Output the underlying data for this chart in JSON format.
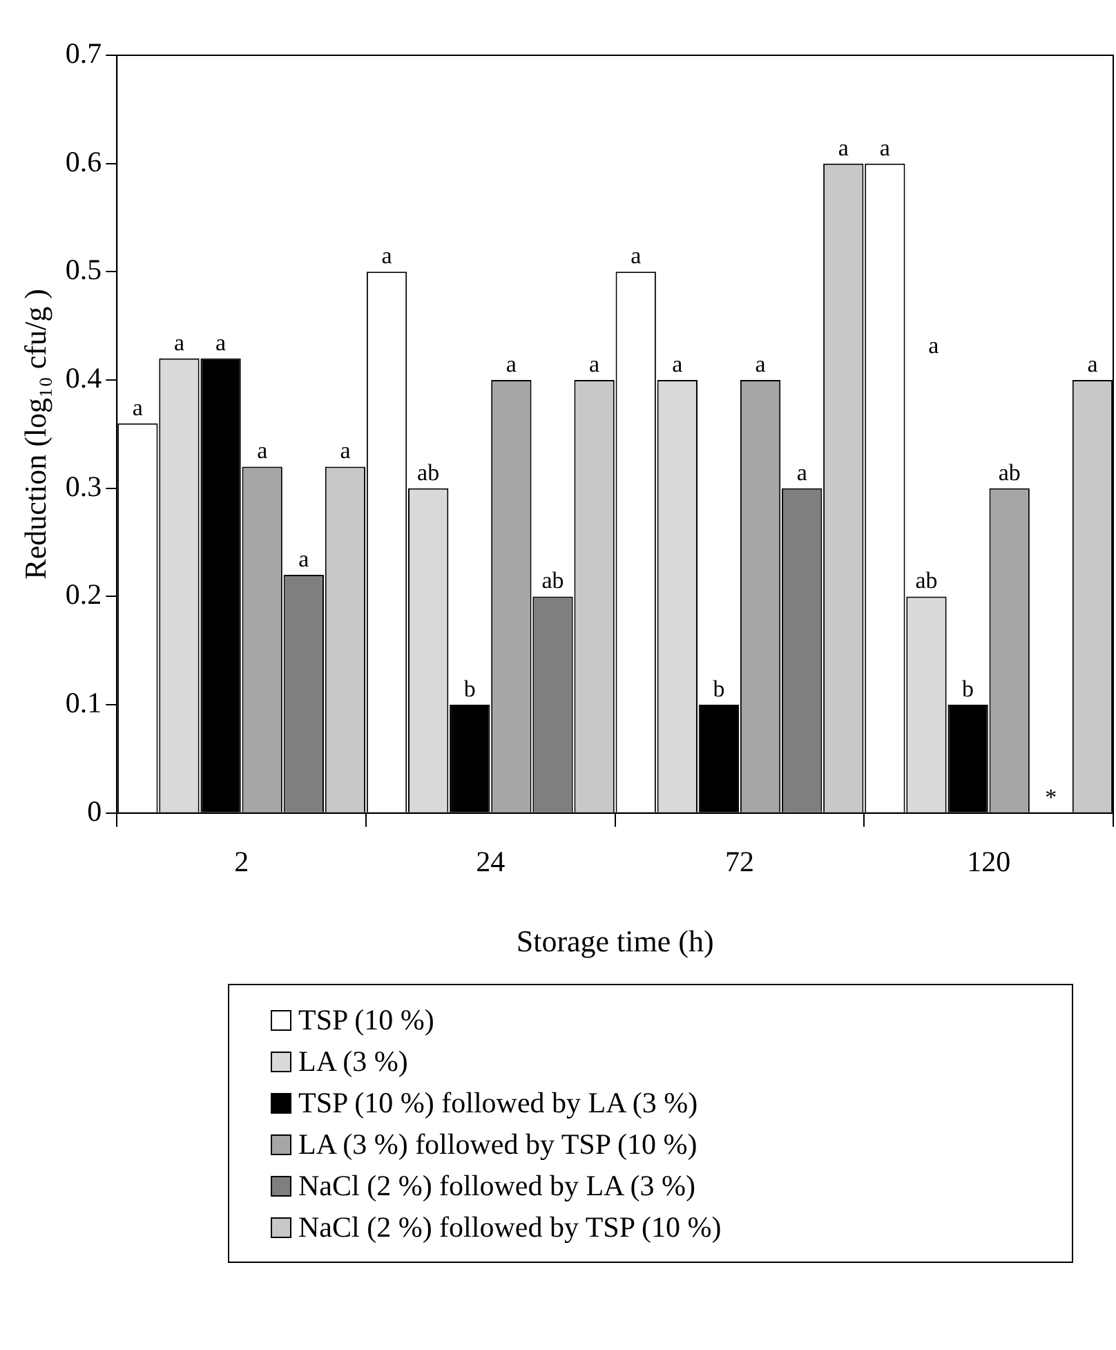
{
  "chart_data": {
    "type": "bar",
    "xlabel": "Storage time (h)",
    "ylabel": "Reduction (log₁₀ cfu/g )",
    "categories": [
      "2",
      "24",
      "72",
      "120"
    ],
    "series": [
      {
        "name": "TSP (10 %)",
        "color": "#ffffff",
        "values": [
          0.36,
          0.5,
          0.5,
          0.6
        ],
        "value_labels": [
          "a",
          "a",
          "a",
          "a"
        ]
      },
      {
        "name": "LA (3 %)",
        "color": "#d9d9d9",
        "values": [
          0.42,
          0.3,
          0.4,
          0.2
        ],
        "value_labels": [
          "a",
          "ab",
          "a",
          "ab"
        ]
      },
      {
        "name": "TSP (10 %) followed by LA (3 %)",
        "color": "#000000",
        "values": [
          0.42,
          0.1,
          0.1,
          0.1
        ],
        "value_labels": [
          "a",
          "b",
          "b",
          "b"
        ]
      },
      {
        "name": "LA (3 %) followed by TSP (10 %)",
        "color": "#a6a6a6",
        "values": [
          0.32,
          0.4,
          0.4,
          0.3
        ],
        "value_labels": [
          "a",
          "a",
          "a",
          "ab"
        ]
      },
      {
        "name": "NaCl (2 %) followed by LA (3 %)",
        "color": "#7f7f7f",
        "values": [
          0.22,
          0.2,
          0.3,
          null
        ],
        "value_labels": [
          "a",
          "ab",
          "a",
          "*"
        ]
      },
      {
        "name": "NaCl (2 %) followed by TSP (10 %)",
        "color": "#c8c8c8",
        "values": [
          0.32,
          0.4,
          0.6,
          0.4
        ],
        "value_labels": [
          "a",
          "a",
          "a",
          "a"
        ]
      }
    ],
    "annotations": [
      "a"
    ],
    "ylim": [
      0,
      0.7
    ],
    "yticks": [
      0,
      0.1,
      0.2,
      0.3,
      0.4,
      0.5,
      0.6,
      0.7
    ],
    "grid": false,
    "legend": "bottom"
  }
}
